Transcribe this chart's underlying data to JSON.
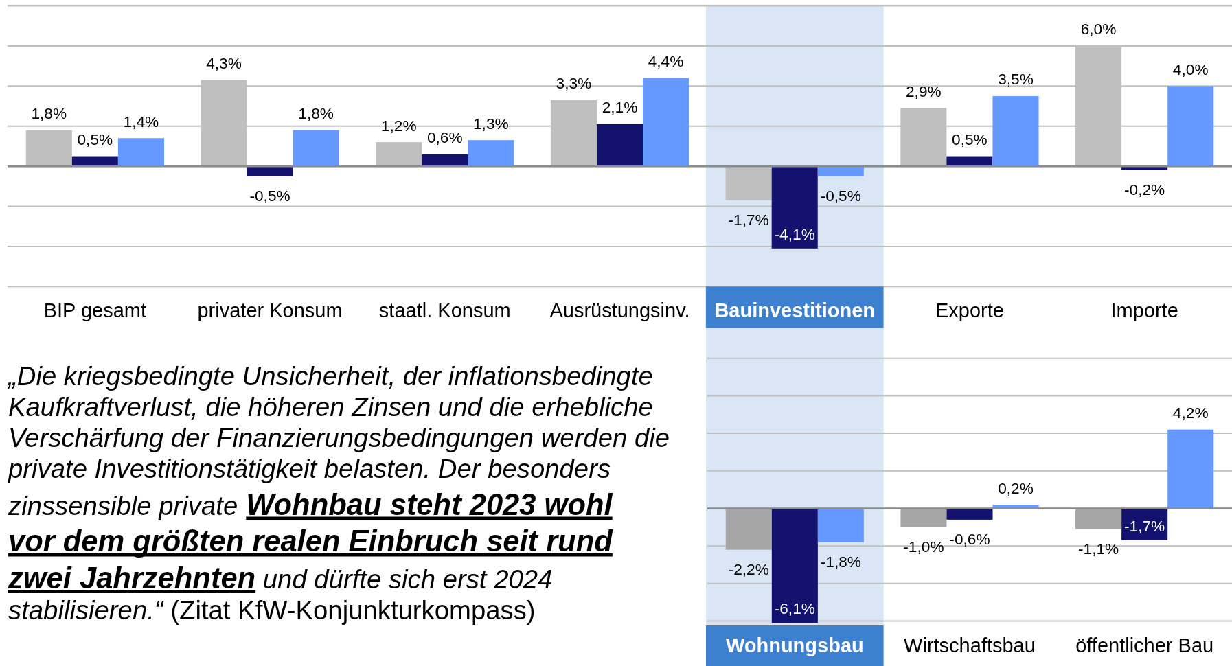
{
  "chart_data": [
    {
      "type": "bar",
      "categories": [
        "BIP gesamt",
        "privater Konsum",
        "staatl. Konsum",
        "Ausrüstungsinv.",
        "Bauinvestitionen",
        "Exporte",
        "Importe"
      ],
      "series": [
        {
          "color": "#bfbfbf",
          "values": [
            1.8,
            4.3,
            1.2,
            3.3,
            -1.7,
            2.9,
            6.0
          ],
          "value_labels": [
            "1,8%",
            "4,3%",
            "1,2%",
            "3,3%",
            "-1,7%",
            "2,9%",
            "6,0%"
          ]
        },
        {
          "color": "#13136f",
          "values": [
            0.5,
            -0.5,
            0.6,
            2.1,
            -4.1,
            0.5,
            -0.2
          ],
          "value_labels": [
            "0,5%",
            "-0,5%",
            "0,6%",
            "2,1%",
            "-4,1%",
            "0,5%",
            "-0,2%"
          ]
        },
        {
          "color": "#6699ff",
          "values": [
            1.4,
            1.8,
            1.3,
            4.4,
            -0.5,
            3.5,
            4.0
          ],
          "value_labels": [
            "1,4%",
            "1,8%",
            "1,3%",
            "4,4%",
            "-0,5%",
            "3,5%",
            "4,0%"
          ]
        }
      ],
      "ylim": [
        -6,
        8
      ],
      "yticks": [
        -6,
        -4,
        -2,
        0,
        2,
        4,
        6,
        8
      ],
      "tick_labels": "x",
      "grid": "y",
      "bands": [
        {
          "axis": "x",
          "from": "Bauinvestitionen",
          "to": "Bauinvestitionen",
          "color": "#dae6f5"
        }
      ]
    },
    {
      "type": "other",
      "annotations": [
        "„Die kriegsbedingte Unsicherheit, der inflationsbedingte Kaufkraftverlust, die höheren Zinsen und die erhebliche Verschärfung der Finanzierungsbedingungen werden die private Investitionstätigkeit belasten. Der besonders",
        "zinssensible private",
        "Wohnbau steht 2023 wohl",
        "vor dem größten realen Einbruch seit rund",
        "zwei Jahrzehnten",
        "und dürfte sich erst 2024",
        "stabilisieren.“",
        "(Zitat KfW-Konjunkturkompass)"
      ]
    },
    {
      "type": "bar",
      "categories": [
        "Wohnungsbau",
        "Wirtschaftsbau",
        "öffentlicher Bau"
      ],
      "series": [
        {
          "color": "#a6a6a6",
          "values": [
            -2.2,
            -1.0,
            -1.1
          ],
          "value_labels": [
            "-2,2%",
            "-1,0%",
            "-1,1%"
          ]
        },
        {
          "color": "#13136f",
          "values": [
            -6.1,
            -0.6,
            -1.7
          ],
          "value_labels": [
            "-6,1%",
            "-0,6%",
            "-1,7%"
          ]
        },
        {
          "color": "#6699ff",
          "values": [
            -1.8,
            0.2,
            4.2
          ],
          "value_labels": [
            "-1,8%",
            "0,2%",
            "4,2%"
          ]
        }
      ],
      "ylim": [
        -6.2,
        9.6
      ],
      "yticks": [
        -6,
        -4,
        -2,
        0,
        2,
        4,
        6,
        8
      ],
      "tick_labels": "x",
      "grid": "y",
      "bands": [
        {
          "axis": "x",
          "from": "Wohnungsbau",
          "to": "Wohnungsbau",
          "color": "#dae6f5"
        }
      ]
    }
  ]
}
